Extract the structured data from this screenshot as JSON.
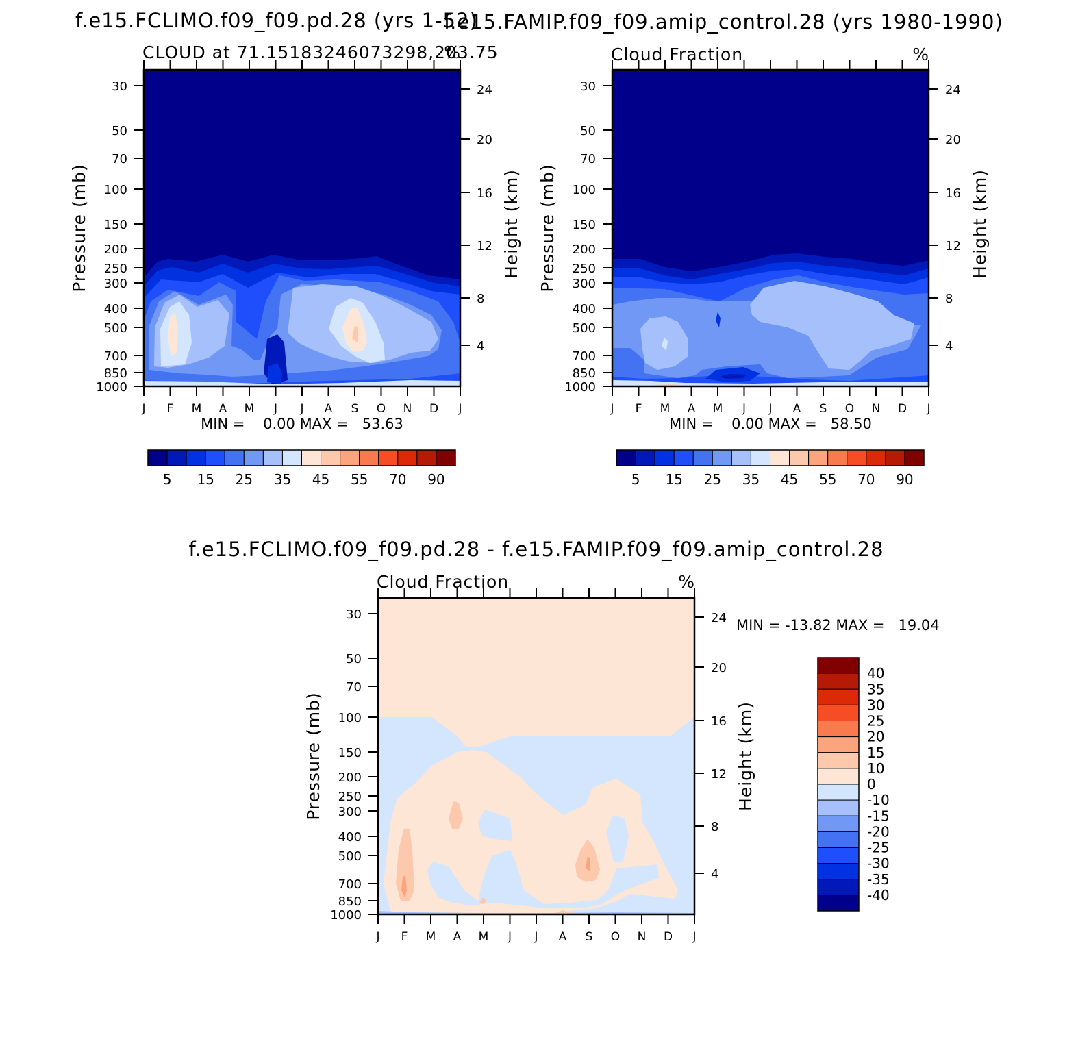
{
  "chart_data": [
    {
      "type": "heatmap",
      "title": "f.e15.FCLIMO.f09_f09.pd.28 (yrs 1-52)",
      "subtitle_left": "CLOUD at 71.15183246073298,203.75",
      "subtitle_right": "%",
      "ylabel_left": "Pressure (mb)",
      "ylabel_right": "Height (km)",
      "pressure_ticks": [
        30,
        50,
        70,
        100,
        150,
        200,
        250,
        300,
        400,
        500,
        700,
        850,
        1000
      ],
      "height_ticks": [
        4,
        8,
        12,
        16,
        20,
        24
      ],
      "month_labels": [
        "J",
        "F",
        "M",
        "A",
        "M",
        "J",
        "J",
        "A",
        "S",
        "O",
        "N",
        "D",
        "J"
      ],
      "min_max_label": "MIN =    0.00 MAX =   53.63",
      "colorbar": {
        "orientation": "horizontal",
        "colors": [
          "#00008a",
          "#0019b8",
          "#0032e1",
          "#1f4ffa",
          "#4372f2",
          "#7198f4",
          "#a5c0fb",
          "#d4e6fd",
          "#fee6d6",
          "#fdc9ad",
          "#fba47e",
          "#f97b4d",
          "#f64d24",
          "#dc2a08",
          "#b51a04",
          "#800000"
        ],
        "labels": [
          "5",
          "15",
          "25",
          "35",
          "45",
          "55",
          "70",
          "90"
        ]
      }
    },
    {
      "type": "heatmap",
      "title": "f.e15.FAMIP.f09_f09.amip_control.28 (yrs 1980-1990)",
      "subtitle_left": "Cloud Fraction",
      "subtitle_right": "%",
      "ylabel_left": "Pressure (mb)",
      "ylabel_right": "Height (km)",
      "pressure_ticks": [
        30,
        50,
        70,
        100,
        150,
        200,
        250,
        300,
        400,
        500,
        700,
        850,
        1000
      ],
      "height_ticks": [
        4,
        8,
        12,
        16,
        20,
        24
      ],
      "month_labels": [
        "J",
        "F",
        "M",
        "A",
        "M",
        "J",
        "J",
        "A",
        "S",
        "O",
        "N",
        "D",
        "J"
      ],
      "min_max_label": "MIN =    0.00 MAX =   58.50",
      "colorbar": {
        "orientation": "horizontal",
        "colors": [
          "#00008a",
          "#0019b8",
          "#0032e1",
          "#1f4ffa",
          "#4372f2",
          "#7198f4",
          "#a5c0fb",
          "#d4e6fd",
          "#fee6d6",
          "#fdc9ad",
          "#fba47e",
          "#f97b4d",
          "#f64d24",
          "#dc2a08",
          "#b51a04",
          "#800000"
        ],
        "labels": [
          "5",
          "15",
          "25",
          "35",
          "45",
          "55",
          "70",
          "90"
        ]
      }
    },
    {
      "type": "heatmap",
      "title": "f.e15.FCLIMO.f09_f09.pd.28 - f.e15.FAMIP.f09_f09.amip_control.28",
      "subtitle_left": "Cloud Fraction",
      "subtitle_right": "%",
      "ylabel_left": "Pressure (mb)",
      "ylabel_right": "Height (km)",
      "pressure_ticks": [
        30,
        50,
        70,
        100,
        150,
        200,
        250,
        300,
        400,
        500,
        700,
        850,
        1000
      ],
      "height_ticks": [
        4,
        8,
        12,
        16,
        20,
        24
      ],
      "month_labels": [
        "J",
        "F",
        "M",
        "A",
        "M",
        "J",
        "J",
        "A",
        "S",
        "O",
        "N",
        "D",
        "J"
      ],
      "min_max_label": "MIN = -13.82 MAX =   19.04",
      "colorbar": {
        "orientation": "vertical",
        "colors_top_to_bottom": [
          "#800000",
          "#b51a04",
          "#dc2a08",
          "#f64d24",
          "#f97b4d",
          "#fba47e",
          "#fdc9ad",
          "#fee6d6",
          "#d4e6fd",
          "#a5c0fb",
          "#7198f4",
          "#4372f2",
          "#1f4ffa",
          "#0032e1",
          "#0019b8",
          "#00008a"
        ],
        "labels_top_to_bottom": [
          "40",
          "35",
          "30",
          "25",
          "20",
          "15",
          "10",
          "0",
          "-10",
          "-15",
          "-20",
          "-25",
          "-30",
          "-35",
          "-40"
        ]
      }
    }
  ]
}
